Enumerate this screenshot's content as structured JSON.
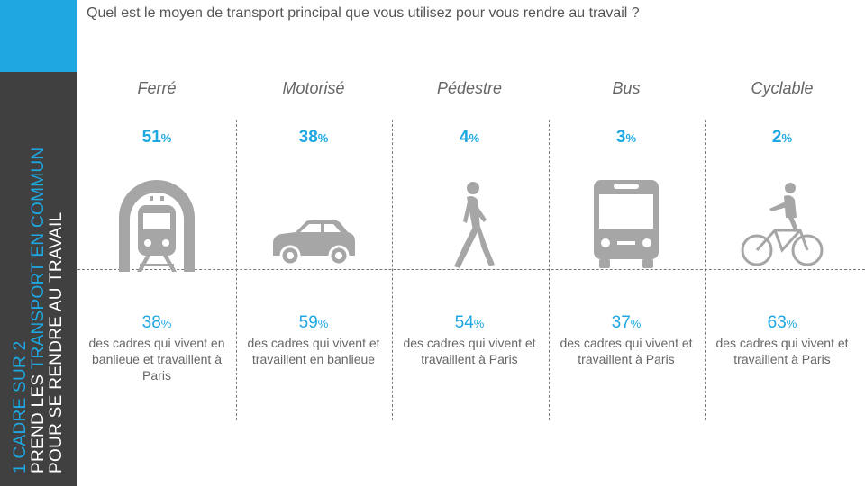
{
  "sidebar": {
    "line1": "1 CADRE SUR 2",
    "line2_a": "PREND LES ",
    "line2_b": "TRANSPORT  EN COMMUN",
    "line3": "POUR SE RENDRE AU TRAVAIL"
  },
  "question": "Quel est le moyen de transport principal que vous utilisez pour vous rendre au travail ?",
  "colors": {
    "accent": "#1ea7e1",
    "dark": "#404040",
    "icon": "#a6a6a6",
    "text": "#666666"
  },
  "percent_sign": "%",
  "modes": [
    {
      "name": "Ferré",
      "share": "51",
      "icon": "metro-icon",
      "stat": "38",
      "desc": "des cadres qui vivent en banlieue et travaillent à Paris"
    },
    {
      "name": "Motorisé",
      "share": "38",
      "icon": "car-icon",
      "stat": "59",
      "desc": "des cadres qui vivent et travaillent en banlieue"
    },
    {
      "name": "Pédestre",
      "share": "4",
      "icon": "pedestrian-icon",
      "stat": "54",
      "desc": "des cadres qui vivent et travaillent à Paris"
    },
    {
      "name": "Bus",
      "share": "3",
      "icon": "bus-icon",
      "stat": "37",
      "desc": "des cadres qui vivent et travaillent à Paris"
    },
    {
      "name": "Cyclable",
      "share": "2",
      "icon": "bicycle-icon",
      "stat": "63",
      "desc": "des cadres qui vivent et travaillent à Paris"
    }
  ]
}
